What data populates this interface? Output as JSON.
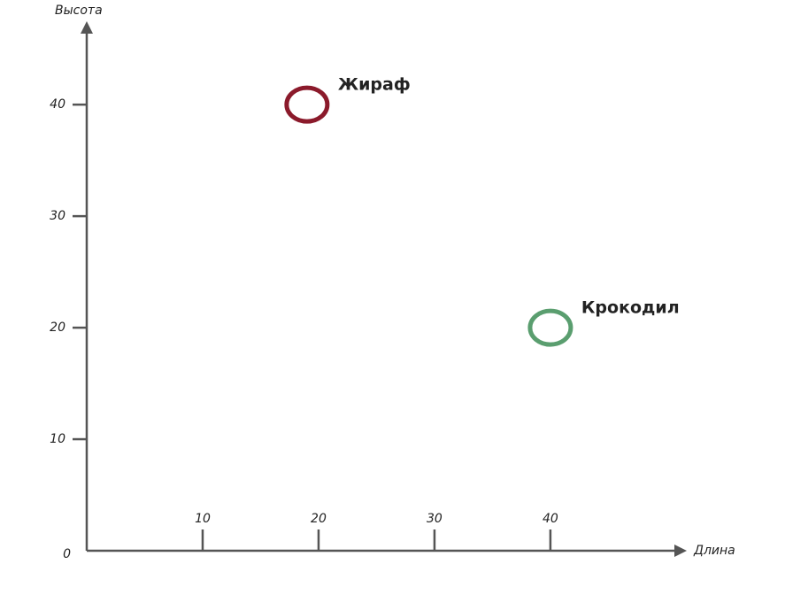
{
  "chart_data": {
    "type": "scatter",
    "x_label": "Длина",
    "y_label": "Высота",
    "xlim": [
      0,
      51
    ],
    "ylim": [
      0,
      47
    ],
    "xticks": [
      10,
      20,
      30,
      40
    ],
    "yticks": [
      0,
      10,
      20,
      30,
      40
    ],
    "series": [
      {
        "name": "Жираф",
        "color": "#8b1a2b",
        "x": [
          19
        ],
        "values": [
          40
        ]
      },
      {
        "name": "Крокодил",
        "color": "#5a9e6f",
        "x": [
          40
        ],
        "values": [
          20
        ]
      }
    ]
  }
}
